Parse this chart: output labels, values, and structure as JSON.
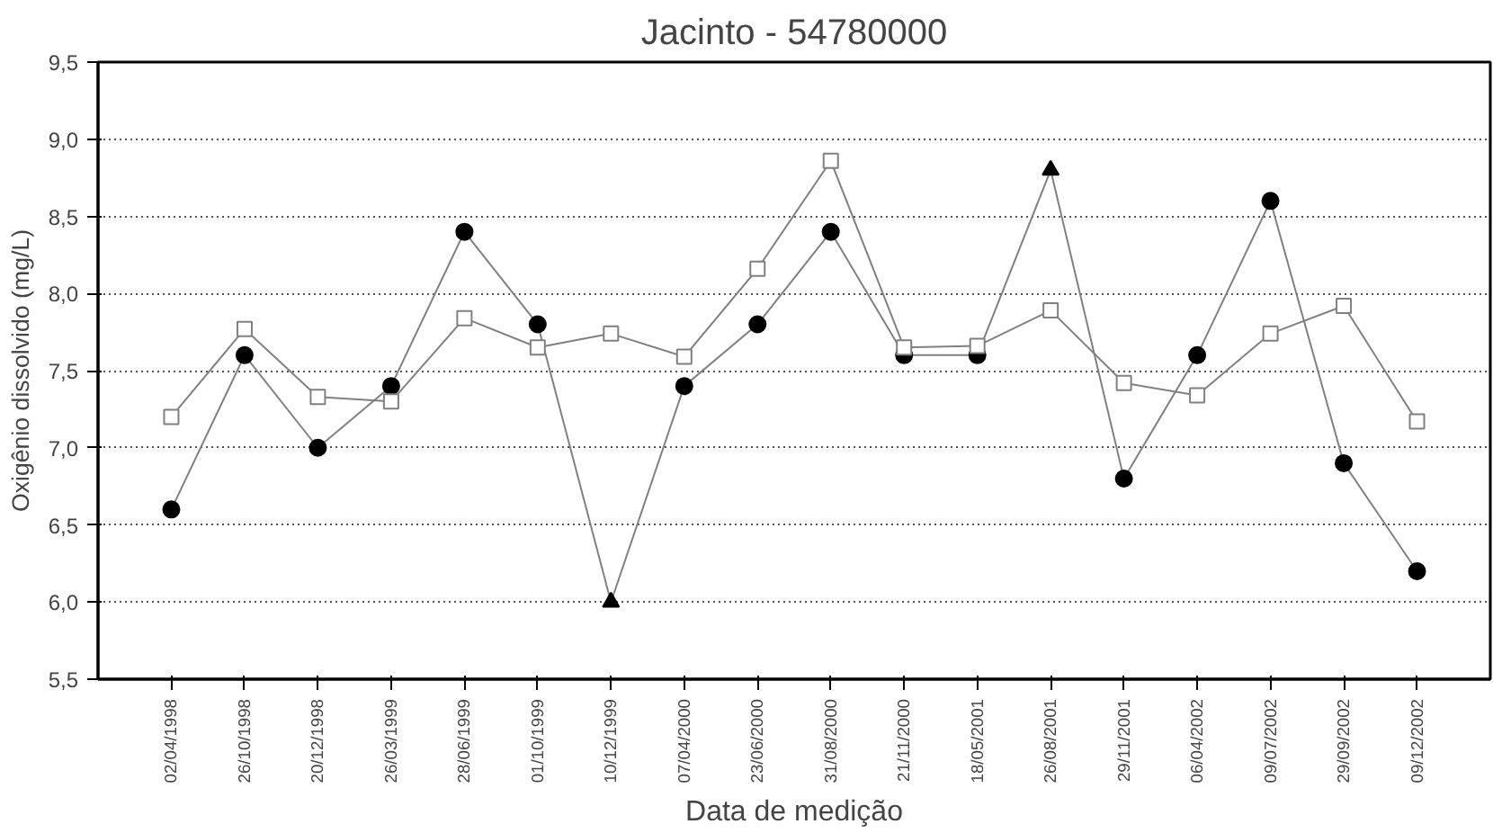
{
  "chart_data": {
    "type": "line",
    "title": "Jacinto - 54780000",
    "xlabel": "Data de medição",
    "ylabel": "Oxigênio dissolvido (mg/L)",
    "categories": [
      "02/04/1998",
      "26/10/1998",
      "20/12/1998",
      "26/03/1999",
      "28/06/1999",
      "01/10/1999",
      "10/12/1999",
      "07/04/2000",
      "23/06/2000",
      "31/08/2000",
      "21/11/2000",
      "18/05/2001",
      "26/08/2001",
      "29/11/2001",
      "06/04/2002",
      "09/07/2002",
      "29/09/2002",
      "09/12/2002"
    ],
    "series": [
      {
        "type": "line",
        "color": "#808080",
        "marker": "none",
        "values": [
          6.6,
          7.6,
          7.0,
          7.4,
          8.4,
          7.8,
          6.0,
          7.4,
          7.8,
          8.4,
          7.6,
          7.6,
          8.8,
          6.8,
          7.6,
          8.6,
          6.9,
          6.2
        ]
      },
      {
        "type": "scatter",
        "color": "#000000",
        "marker": "circle",
        "values": [
          6.6,
          7.6,
          7.0,
          7.4,
          8.4,
          7.8,
          null,
          7.4,
          7.8,
          8.4,
          7.6,
          7.6,
          null,
          6.8,
          7.6,
          8.6,
          6.9,
          6.2
        ]
      },
      {
        "type": "scatter",
        "color": "#000000",
        "marker": "triangle",
        "values": [
          null,
          null,
          null,
          null,
          null,
          null,
          6.0,
          null,
          null,
          null,
          null,
          null,
          8.8,
          null,
          null,
          null,
          null,
          null
        ]
      },
      {
        "color": "#808080",
        "marker": "square",
        "values": [
          7.2,
          7.77,
          7.33,
          7.3,
          7.84,
          7.65,
          7.74,
          7.59,
          8.16,
          8.86,
          7.65,
          7.66,
          7.89,
          7.42,
          7.34,
          7.74,
          7.92,
          7.17
        ]
      }
    ],
    "ylim": [
      5.5,
      9.5
    ],
    "yticks": [
      {
        "value": 5.5,
        "label": "5,5"
      },
      {
        "value": 6.0,
        "label": "6,0"
      },
      {
        "value": 6.5,
        "label": "6,5"
      },
      {
        "value": 7.0,
        "label": "7,0"
      },
      {
        "value": 7.5,
        "label": "7,5"
      },
      {
        "value": 8.0,
        "label": "8,0"
      },
      {
        "value": 8.5,
        "label": "8,5"
      },
      {
        "value": 9.0,
        "label": "9,0"
      },
      {
        "value": 9.5,
        "label": "9,5"
      }
    ],
    "grid": "y",
    "line_style": "solid"
  }
}
